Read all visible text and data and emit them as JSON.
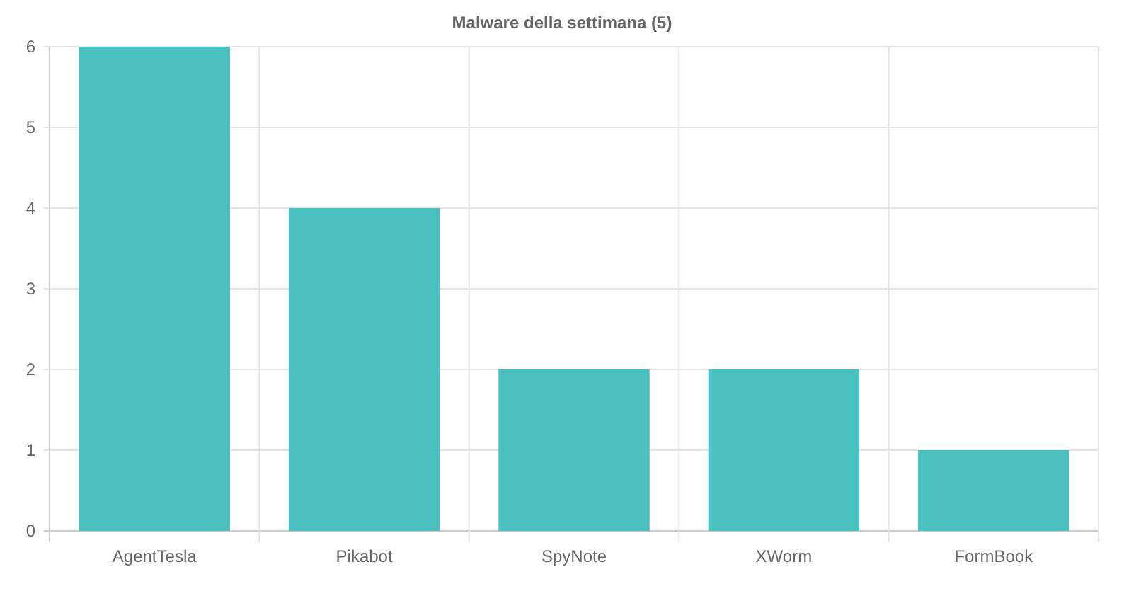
{
  "chart_data": {
    "type": "bar",
    "title": "Malware della settimana (5)",
    "categories": [
      "AgentTesla",
      "Pikabot",
      "SpyNote",
      "XWorm",
      "FormBook"
    ],
    "values": [
      6,
      4,
      2,
      2,
      1
    ],
    "color": "#4bc0c0",
    "ylim": [
      0,
      6
    ],
    "yticks": [
      0,
      1,
      2,
      3,
      4,
      5,
      6
    ],
    "grid": true
  }
}
